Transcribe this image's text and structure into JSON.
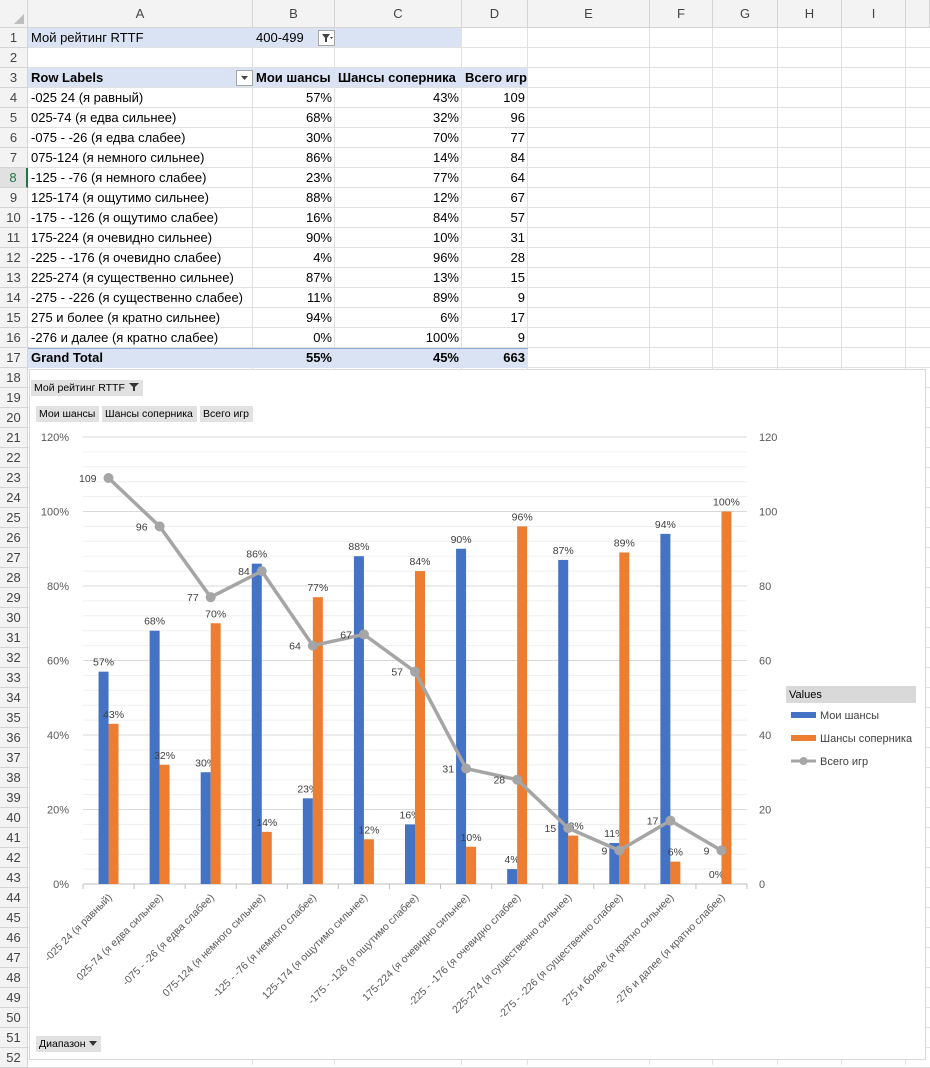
{
  "columns": [
    "A",
    "B",
    "C",
    "D",
    "E",
    "F",
    "G",
    "H",
    "I"
  ],
  "rows": [
    "1",
    "2",
    "3",
    "4",
    "5",
    "6",
    "7",
    "8",
    "9",
    "10",
    "11",
    "12",
    "13",
    "14",
    "15",
    "16",
    "17",
    "18",
    "19",
    "20",
    "21",
    "22",
    "23",
    "24",
    "25",
    "26",
    "27",
    "28",
    "29",
    "30",
    "31",
    "32",
    "33",
    "34",
    "35",
    "36",
    "37",
    "38",
    "39",
    "40",
    "41",
    "42",
    "43",
    "44",
    "45",
    "46",
    "47",
    "48",
    "49",
    "50",
    "51",
    "52"
  ],
  "filter": {
    "label": "Мой рейтинг RTTF",
    "value": "400-499"
  },
  "table": {
    "headers": [
      "Row Labels",
      "Мои шансы",
      "Шансы соперника",
      "Всего игр"
    ],
    "rows": [
      [
        "-025  24 (я равный)",
        "57%",
        "43%",
        "109"
      ],
      [
        "025-74 (я едва сильнее)",
        "68%",
        "32%",
        "96"
      ],
      [
        "-075 - -26 (я едва слабее)",
        "30%",
        "70%",
        "77"
      ],
      [
        "075-124 (я немного сильнее)",
        "86%",
        "14%",
        "84"
      ],
      [
        "-125 - -76 (я немного слабее)",
        "23%",
        "77%",
        "64"
      ],
      [
        "125-174 (я ощутимо сильнее)",
        "88%",
        "12%",
        "67"
      ],
      [
        "-175 - -126 (я ощутимо слабее)",
        "16%",
        "84%",
        "57"
      ],
      [
        "175-224 (я очевидно сильнее)",
        "90%",
        "10%",
        "31"
      ],
      [
        "-225 - -176 (я очевидно слабее)",
        "4%",
        "96%",
        "28"
      ],
      [
        "225-274 (я существенно сильнее)",
        "87%",
        "13%",
        "15"
      ],
      [
        "-275 - -226 (я существенно слабее)",
        "11%",
        "89%",
        "9"
      ],
      [
        "275 и более (я кратно сильнее)",
        "94%",
        "6%",
        "17"
      ],
      [
        "-276 и далее (я кратно слабее)",
        "0%",
        "100%",
        "9"
      ]
    ],
    "total": [
      "Grand Total",
      "55%",
      "45%",
      "663"
    ]
  },
  "chart_ui": {
    "filter_button": "Мой рейтинг RTTF",
    "value_buttons": [
      "Мои шансы",
      "Шансы соперника",
      "Всего игр"
    ],
    "axis_button": "Диапазон",
    "legend_title": "Values"
  },
  "chart_data": {
    "type": "bar",
    "categories": [
      "-025  24 (я равный)",
      "025-74 (я едва сильнее)",
      "-075 - -26 (я едва слабее)",
      "075-124 (я немного сильнее)",
      "-125 - -76 (я немного слабее)",
      "125-174 (я ощутимо сильнее)",
      "-175 - -126 (я ощутимо слабее)",
      "175-224 (я очевидно сильнее)",
      "-225 - -176 (я очевидно слабее)",
      "225-274 (я существенно сильнее)",
      "-275 - -226 (я существенно слабее)",
      "275 и более (я кратно сильнее)",
      "-276 и далее (я кратно слабее)"
    ],
    "series": [
      {
        "name": "Мои шансы",
        "kind": "bar",
        "axis": "left",
        "color": "#4472c4",
        "values": [
          57,
          68,
          30,
          86,
          23,
          88,
          16,
          90,
          4,
          87,
          11,
          94,
          0
        ],
        "labels": [
          "57%",
          "68%",
          "30%",
          "86%",
          "23%",
          "88%",
          "16%",
          "90%",
          "4%",
          "87%",
          "11%",
          "94%",
          "0%"
        ]
      },
      {
        "name": "Шансы соперника",
        "kind": "bar",
        "axis": "left",
        "color": "#ed7d31",
        "values": [
          43,
          32,
          70,
          14,
          77,
          12,
          84,
          10,
          96,
          13,
          89,
          6,
          100
        ],
        "labels": [
          "43%",
          "32%",
          "70%",
          "14%",
          "77%",
          "12%",
          "84%",
          "10%",
          "96%",
          "13%",
          "89%",
          "6%",
          "100%"
        ]
      },
      {
        "name": "Всего игр",
        "kind": "line",
        "axis": "right",
        "color": "#a5a5a5",
        "values": [
          109,
          96,
          77,
          84,
          64,
          67,
          57,
          31,
          28,
          15,
          9,
          17,
          9
        ],
        "labels": [
          "109",
          "96",
          "77",
          "84",
          "64",
          "67",
          "57",
          "31",
          "28",
          "15",
          "9",
          "17",
          "9"
        ]
      }
    ],
    "y_left": {
      "min": 0,
      "max": 120,
      "ticks": [
        "0%",
        "20%",
        "40%",
        "60%",
        "80%",
        "100%",
        "120%"
      ]
    },
    "y_right": {
      "min": 0,
      "max": 120,
      "ticks": [
        "0",
        "20",
        "40",
        "60",
        "80",
        "100",
        "120"
      ]
    },
    "grid": true,
    "legend_position": "right"
  }
}
